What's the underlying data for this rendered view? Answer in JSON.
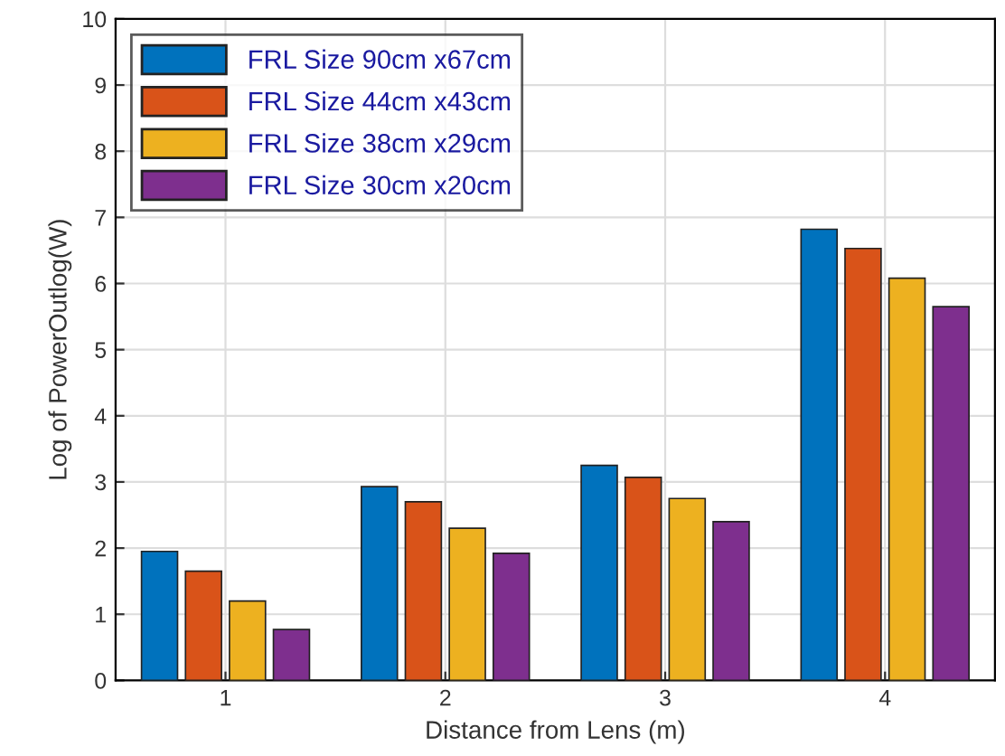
{
  "chart_data": {
    "type": "bar",
    "xlabel": "Distance from Lens (m)",
    "ylabel": "Log of PowerOutlog(W)",
    "categories": [
      "1",
      "2",
      "3",
      "4"
    ],
    "series": [
      {
        "name": "FRL Size 90cm x67cm",
        "color": "#0072bd",
        "values": [
          1.95,
          2.93,
          3.25,
          6.82
        ]
      },
      {
        "name": "FRL Size 44cm x43cm",
        "color": "#d95319",
        "values": [
          1.65,
          2.7,
          3.07,
          6.53
        ]
      },
      {
        "name": "FRL Size 38cm x29cm",
        "color": "#edb120",
        "values": [
          1.2,
          2.3,
          2.75,
          6.08
        ]
      },
      {
        "name": "FRL Size 30cm x20cm",
        "color": "#7e2f8e",
        "values": [
          0.77,
          1.92,
          2.4,
          5.65
        ]
      }
    ],
    "ylim": [
      0,
      10
    ],
    "yticks": [
      0,
      1,
      2,
      3,
      4,
      5,
      6,
      7,
      8,
      9,
      10
    ],
    "grid": true,
    "legend": "top left"
  }
}
